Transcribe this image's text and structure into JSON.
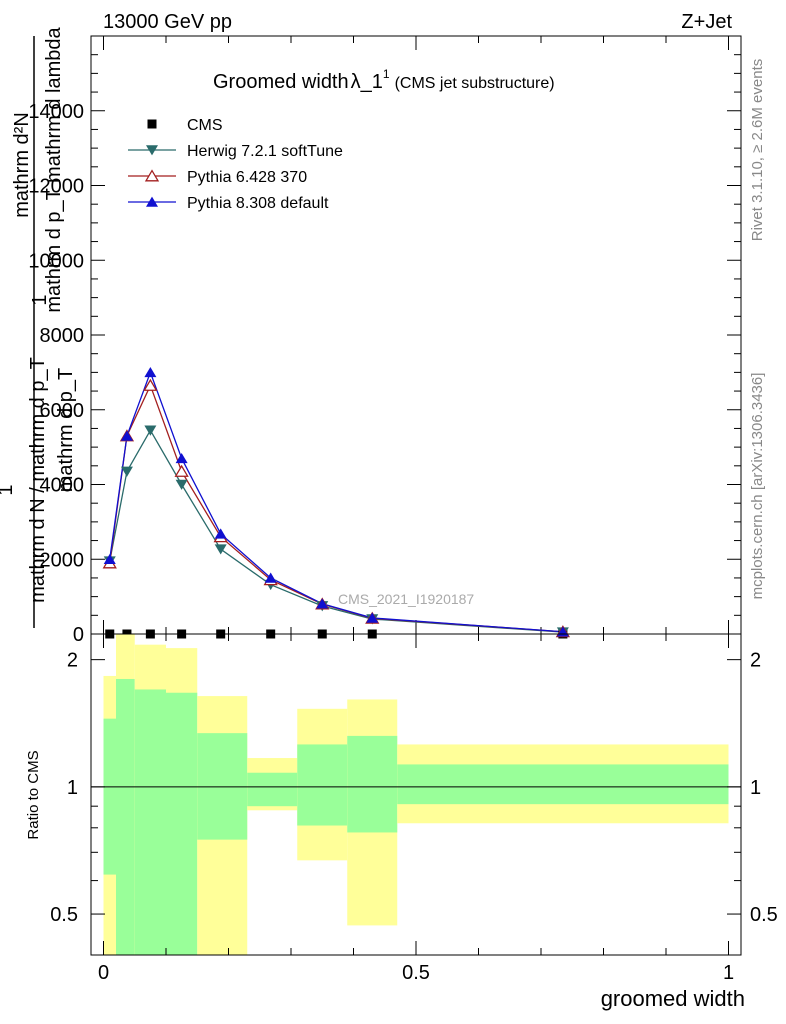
{
  "header": {
    "left": "13000 GeV pp",
    "right": "Z+Jet"
  },
  "side_text": {
    "rivet": "Rivet 3.1.10, ≥ 2.6M events",
    "mcplots": "mcplots.cern.ch [arXiv:1306.3436]"
  },
  "chart_data": [
    {
      "type": "line",
      "title": "Groomed width",
      "title_symbol": "λ_1",
      "title_sup": "1",
      "title_suffix": "(CMS jet substructure)",
      "ylabel_num": "mathrm d²N",
      "ylabel_den_outer": "mathrm d p_T mathrm d lambda",
      "ylabel_one": "1",
      "ylabel_den_full": "mathrm d N / mathrm d p_T",
      "ylabel_mid": "mathrm d p_T",
      "watermark": "CMS_2021_I1920187",
      "ylim": [
        0,
        16000
      ],
      "xlim": [
        -0.02,
        1.02
      ],
      "y_ticks": [
        0,
        2000,
        4000,
        6000,
        8000,
        10000,
        12000,
        14000
      ],
      "y_tick_labels": [
        "0",
        "2000",
        "4000",
        "6000",
        "8000",
        "10000",
        "12000",
        "14000"
      ],
      "legend_position": "top-left",
      "x": [
        0.01,
        0.0375,
        0.075,
        0.125,
        0.1875,
        0.2675,
        0.35,
        0.43,
        0.735
      ],
      "series": [
        {
          "name": "CMS",
          "color": "#000000",
          "marker": "square",
          "values": [
            0,
            0,
            0,
            0,
            0,
            0,
            0,
            0,
            0
          ]
        },
        {
          "name": "Herwig 7.2.1 softTune",
          "color": "#2a6b6b",
          "marker": "triangle-down",
          "values": [
            1950,
            4350,
            5450,
            4000,
            2270,
            1320,
            750,
            400,
            50
          ]
        },
        {
          "name": "Pythia 6.428 370",
          "color": "#a31f1f",
          "marker": "triangle-open",
          "values": [
            1900,
            5300,
            6650,
            4350,
            2600,
            1450,
            800,
            420,
            60
          ]
        },
        {
          "name": "Pythia 8.308 default",
          "color": "#1010d0",
          "marker": "triangle-up",
          "values": [
            2000,
            5300,
            7000,
            4700,
            2680,
            1500,
            810,
            430,
            60
          ]
        }
      ]
    },
    {
      "type": "area",
      "ylabel": "Ratio to CMS",
      "xlabel": "groomed width",
      "log_y": true,
      "ylim": [
        0.4,
        2.3
      ],
      "x_ticks": [
        0,
        0.5,
        1
      ],
      "x_tick_labels": [
        "0",
        "0.5",
        "1"
      ],
      "y_ticks": [
        0.5,
        1,
        2
      ],
      "y_tick_labels": [
        "0.5",
        "1",
        "2"
      ],
      "reference_line": 1,
      "bands": [
        {
          "x0": 0.0,
          "x1": 0.02,
          "inner": [
            0.62,
            1.45
          ],
          "outer": [
            0.38,
            1.83
          ]
        },
        {
          "x0": 0.02,
          "x1": 0.05,
          "inner": [
            0.38,
            1.8
          ],
          "outer": [
            0.38,
            2.3
          ]
        },
        {
          "x0": 0.05,
          "x1": 0.1,
          "inner": [
            0.38,
            1.7
          ],
          "outer": [
            0.38,
            2.17
          ]
        },
        {
          "x0": 0.1,
          "x1": 0.15,
          "inner": [
            0.38,
            1.67
          ],
          "outer": [
            0.38,
            2.13
          ]
        },
        {
          "x0": 0.15,
          "x1": 0.23,
          "inner": [
            0.75,
            1.34
          ],
          "outer": [
            0.4,
            1.64
          ]
        },
        {
          "x0": 0.23,
          "x1": 0.31,
          "inner": [
            0.9,
            1.08
          ],
          "outer": [
            0.88,
            1.17
          ]
        },
        {
          "x0": 0.31,
          "x1": 0.39,
          "inner": [
            0.81,
            1.26
          ],
          "outer": [
            0.67,
            1.53
          ]
        },
        {
          "x0": 0.39,
          "x1": 0.47,
          "inner": [
            0.78,
            1.32
          ],
          "outer": [
            0.47,
            1.61
          ]
        },
        {
          "x0": 0.47,
          "x1": 1.0,
          "inner": [
            0.91,
            1.13
          ],
          "outer": [
            0.82,
            1.26
          ]
        }
      ],
      "colors": {
        "inner": "#99ff99",
        "outer": "#ffff99"
      }
    }
  ]
}
